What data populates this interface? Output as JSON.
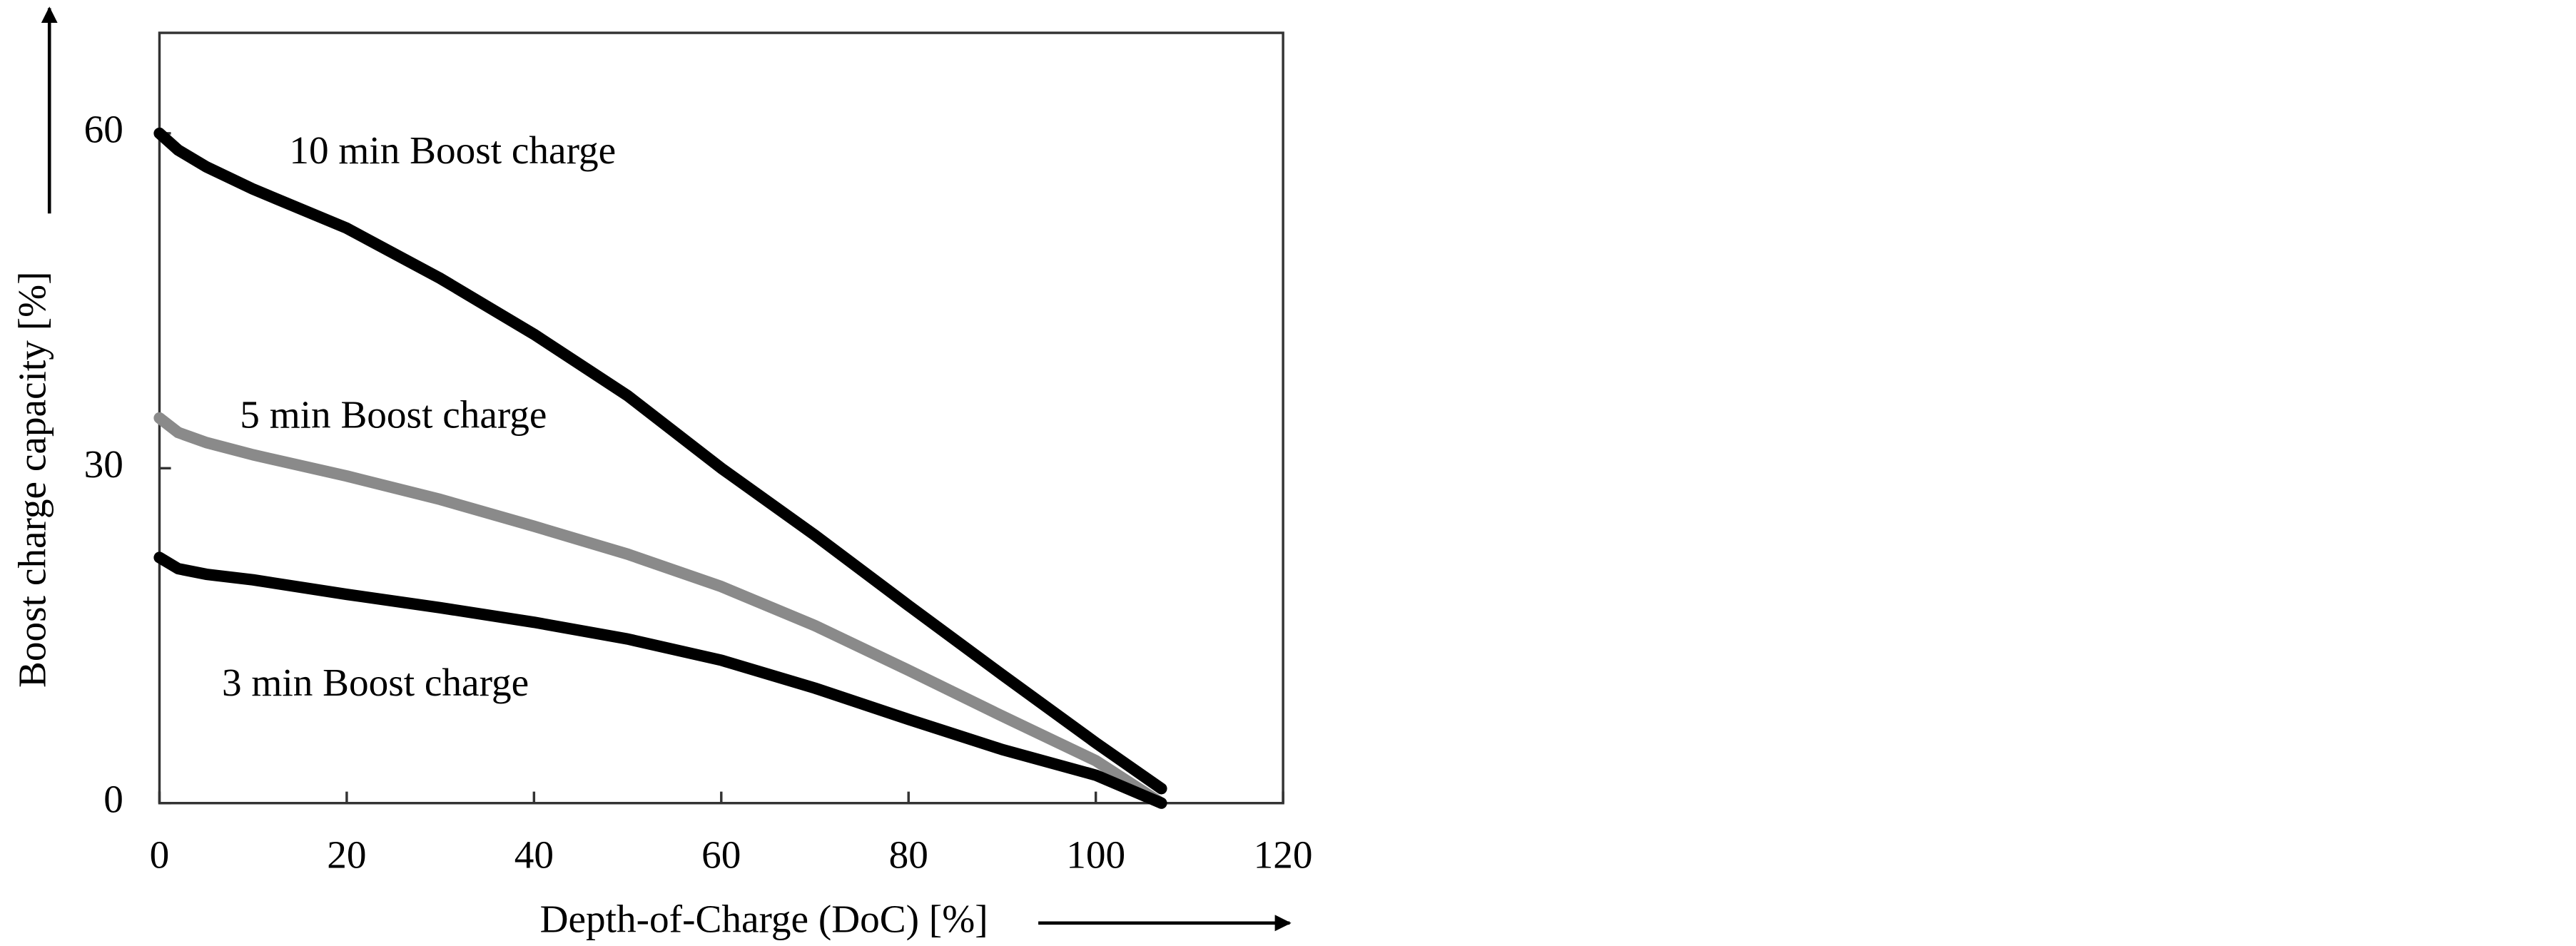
{
  "chart_data": {
    "type": "line",
    "xlabel": "Depth-of-Charge (DoC) [%]",
    "ylabel": "Boost charge capacity [%]",
    "x": [
      0,
      2,
      5,
      10,
      20,
      30,
      40,
      50,
      60,
      70,
      80,
      90,
      100,
      107
    ],
    "series": [
      {
        "name": "10 min Boost charge",
        "color": "#000000",
        "values": [
          60,
          58.5,
          57,
          55,
          51.5,
          47,
          42,
          36.5,
          30,
          24,
          17.7,
          11.5,
          5.4,
          1.3
        ]
      },
      {
        "name": "5 min Boost charge",
        "color": "#8a8a8a",
        "values": [
          34.5,
          33.2,
          32.3,
          31.2,
          29.3,
          27.2,
          24.8,
          22.3,
          19.4,
          15.9,
          11.9,
          7.8,
          3.8,
          0
        ]
      },
      {
        "name": "3 min Boost charge",
        "color": "#000000",
        "values": [
          22,
          21,
          20.5,
          20,
          18.7,
          17.5,
          16.2,
          14.7,
          12.8,
          10.3,
          7.5,
          4.8,
          2.5,
          0
        ]
      }
    ],
    "xlim": [
      0,
      120
    ],
    "xticks": [
      0,
      20,
      40,
      60,
      80,
      100,
      120
    ],
    "ylim": [
      0,
      69
    ],
    "yticks": [
      0,
      30,
      60
    ],
    "grid": false
  }
}
